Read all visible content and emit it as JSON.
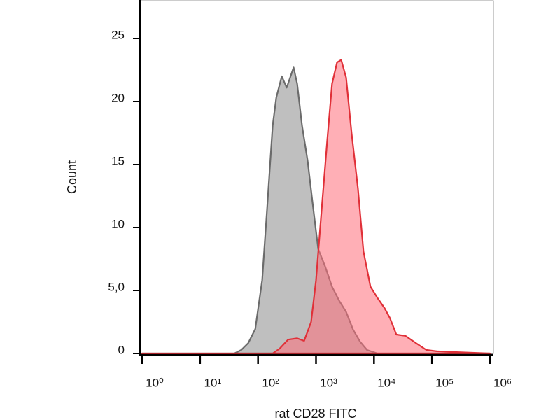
{
  "chart_data": {
    "type": "area",
    "x_label": "rat CD28 FITC",
    "y_label": "Count",
    "xscale": "log",
    "xlim": [
      1,
      1000000
    ],
    "xticks": [
      {
        "value": 1,
        "label": "10⁰"
      },
      {
        "value": 10,
        "label": "10¹"
      },
      {
        "value": 100,
        "label": "10²"
      },
      {
        "value": 1000,
        "label": "10³"
      },
      {
        "value": 10000,
        "label": "10⁴"
      },
      {
        "value": 100000,
        "label": "10⁵"
      },
      {
        "value": 1000000,
        "label": "10⁶"
      }
    ],
    "ylim": [
      0,
      28
    ],
    "yticks": [
      0,
      {
        "value": 5,
        "label": "5,0"
      },
      10,
      15,
      20,
      25
    ],
    "series": [
      {
        "color": "#6b6b6b",
        "fill": "#b4b4b4",
        "x": [
          1,
          38.9,
          51.4,
          67.8,
          89.5,
          118,
          143,
          179,
          206,
          257,
          312,
          411,
          473,
          574,
          717,
          871,
          1090,
          1440,
          1890,
          2500,
          3300,
          4350,
          5740,
          7580,
          11500,
          1000000
        ],
        "values": [
          0,
          0,
          0.28,
          0.83,
          1.94,
          5.83,
          11.4,
          18.1,
          20.3,
          22.0,
          21.1,
          22.7,
          21.4,
          18.1,
          15.3,
          12.0,
          8.3,
          6.9,
          5.3,
          4.2,
          3.3,
          1.9,
          0.94,
          0.28,
          0,
          0
        ]
      },
      {
        "color": "#e03038",
        "fill": "#ff6e7a",
        "x": [
          1,
          179,
          236,
          330,
          473,
          624,
          824,
          1000,
          1250,
          1560,
          1890,
          2300,
          2720,
          3300,
          4110,
          5280,
          6590,
          8700,
          11500,
          15200,
          18900,
          24300,
          34800,
          52800,
          80100,
          121000,
          243000,
          1000000
        ],
        "values": [
          0,
          0,
          0.39,
          1.1,
          1.2,
          1.0,
          2.5,
          5.8,
          11.4,
          16.9,
          21.4,
          23.1,
          23.3,
          21.9,
          17.5,
          13.1,
          8.1,
          5.3,
          4.4,
          3.6,
          2.8,
          1.5,
          1.4,
          0.83,
          0.28,
          0.17,
          0.11,
          0
        ]
      }
    ]
  }
}
